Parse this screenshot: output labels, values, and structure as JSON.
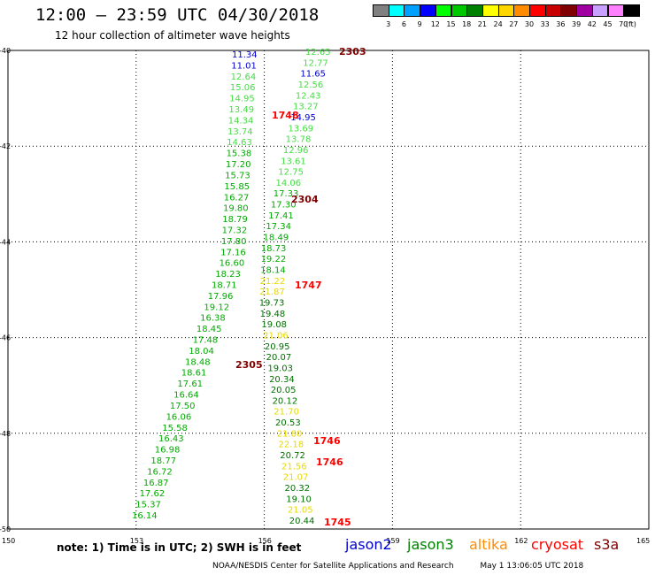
{
  "header": {
    "title": "12:00 – 23:59 UTC 04/30/2018",
    "subtitle": "12 hour collection of altimeter wave heights"
  },
  "legend": {
    "unit": "(ft)",
    "levels": [
      {
        "label": "3",
        "color": "#808080"
      },
      {
        "label": "6",
        "color": "#00ffff"
      },
      {
        "label": "9",
        "color": "#00a0ff"
      },
      {
        "label": "12",
        "color": "#0000ff"
      },
      {
        "label": "15",
        "color": "#00ff00"
      },
      {
        "label": "18",
        "color": "#00c800"
      },
      {
        "label": "21",
        "color": "#008000"
      },
      {
        "label": "24",
        "color": "#ffff00"
      },
      {
        "label": "27",
        "color": "#ffd700"
      },
      {
        "label": "30",
        "color": "#ff8c00"
      },
      {
        "label": "33",
        "color": "#ff0000"
      },
      {
        "label": "36",
        "color": "#c80000"
      },
      {
        "label": "39",
        "color": "#800000"
      },
      {
        "label": "42",
        "color": "#a000a0"
      },
      {
        "label": "45",
        "color": "#c8a0ff"
      },
      {
        "label": "70",
        "color": "#ff80ff"
      },
      {
        "label": "",
        "color": "#000000"
      }
    ]
  },
  "map": {
    "lon_ticks": [
      "150",
      "153",
      "156",
      "159",
      "162",
      "165"
    ],
    "lat_ticks": [
      "-40",
      "-42",
      "-44",
      "-46",
      "-48",
      "-50"
    ]
  },
  "colors": {
    "jason2": "#0000cc",
    "jason3": "#008000",
    "altika": "#ff8c00",
    "cryosat": "#ff0000",
    "s3a": "#800000",
    "light_green": "#44dd44",
    "green": "#00aa00",
    "dark_green": "#007000",
    "yellow": "#e6d800",
    "blue": "#0000cc"
  },
  "tracks": {
    "track_a": [
      {
        "v": "11.34",
        "c": "blue"
      },
      {
        "v": "11.01",
        "c": "blue"
      },
      {
        "v": "12.64",
        "c": "light_green"
      },
      {
        "v": "15.06",
        "c": "light_green"
      },
      {
        "v": "14.95",
        "c": "light_green"
      },
      {
        "v": "13.49",
        "c": "light_green"
      },
      {
        "v": "14.34",
        "c": "light_green"
      },
      {
        "v": "13.74",
        "c": "light_green"
      },
      {
        "v": "14.63",
        "c": "light_green"
      },
      {
        "v": "15.38",
        "c": "green"
      },
      {
        "v": "17.20",
        "c": "green"
      },
      {
        "v": "15.73",
        "c": "green"
      },
      {
        "v": "15.85",
        "c": "green"
      },
      {
        "v": "16.27",
        "c": "green"
      },
      {
        "v": "19.80",
        "c": "green"
      },
      {
        "v": "18.79",
        "c": "green"
      },
      {
        "v": "17.32",
        "c": "green"
      },
      {
        "v": "17.80",
        "c": "green"
      },
      {
        "v": "17.16",
        "c": "green"
      },
      {
        "v": "16.60",
        "c": "green"
      },
      {
        "v": "18.23",
        "c": "green"
      },
      {
        "v": "18.71",
        "c": "green"
      },
      {
        "v": "17.96",
        "c": "green"
      },
      {
        "v": "19.12",
        "c": "green"
      },
      {
        "v": "16.38",
        "c": "green"
      },
      {
        "v": "18.45",
        "c": "green"
      },
      {
        "v": "17.48",
        "c": "green"
      },
      {
        "v": "18.04",
        "c": "green"
      },
      {
        "v": "18.48",
        "c": "green"
      },
      {
        "v": "18.61",
        "c": "green"
      },
      {
        "v": "17.61",
        "c": "green"
      },
      {
        "v": "16.64",
        "c": "green"
      },
      {
        "v": "17.50",
        "c": "green"
      },
      {
        "v": "16.06",
        "c": "green"
      },
      {
        "v": "15.58",
        "c": "green"
      },
      {
        "v": "16.43",
        "c": "green"
      },
      {
        "v": "16.98",
        "c": "green"
      },
      {
        "v": "18.77",
        "c": "green"
      },
      {
        "v": "16.72",
        "c": "green"
      },
      {
        "v": "16.87",
        "c": "green"
      },
      {
        "v": "17.62",
        "c": "green"
      },
      {
        "v": "15.37",
        "c": "green"
      },
      {
        "v": "16.14",
        "c": "green"
      }
    ],
    "track_b": [
      {
        "v": "12.65",
        "c": "light_green"
      },
      {
        "v": "12.77",
        "c": "light_green"
      },
      {
        "v": "11.65",
        "c": "blue"
      },
      {
        "v": "12.56",
        "c": "light_green"
      },
      {
        "v": "12.43",
        "c": "light_green"
      },
      {
        "v": "13.27",
        "c": "light_green"
      },
      {
        "v": "14.95",
        "c": "blue"
      },
      {
        "v": "13.69",
        "c": "light_green"
      },
      {
        "v": "13.78",
        "c": "light_green"
      },
      {
        "v": "12.96",
        "c": "light_green"
      },
      {
        "v": "13.61",
        "c": "light_green"
      },
      {
        "v": "12.75",
        "c": "light_green"
      },
      {
        "v": "14.06",
        "c": "light_green"
      },
      {
        "v": "17.33",
        "c": "green"
      },
      {
        "v": "17.30",
        "c": "green"
      },
      {
        "v": "17.41",
        "c": "green"
      },
      {
        "v": "17.34",
        "c": "green"
      },
      {
        "v": "18.49",
        "c": "green"
      },
      {
        "v": "18.73",
        "c": "green"
      },
      {
        "v": "19.22",
        "c": "green"
      },
      {
        "v": "18.14",
        "c": "green"
      },
      {
        "v": "21.22",
        "c": "yellow"
      },
      {
        "v": "21.87",
        "c": "yellow"
      },
      {
        "v": "19.73",
        "c": "dark_green"
      },
      {
        "v": "19.48",
        "c": "dark_green"
      },
      {
        "v": "19.08",
        "c": "dark_green"
      },
      {
        "v": "21.06",
        "c": "yellow"
      },
      {
        "v": "20.95",
        "c": "dark_green"
      },
      {
        "v": "20.07",
        "c": "dark_green"
      },
      {
        "v": "19.03",
        "c": "dark_green"
      },
      {
        "v": "20.34",
        "c": "dark_green"
      },
      {
        "v": "20.05",
        "c": "dark_green"
      },
      {
        "v": "20.12",
        "c": "dark_green"
      },
      {
        "v": "21.70",
        "c": "yellow"
      },
      {
        "v": "20.53",
        "c": "dark_green"
      },
      {
        "v": "21.80",
        "c": "yellow"
      },
      {
        "v": "22.18",
        "c": "yellow"
      },
      {
        "v": "20.72",
        "c": "dark_green"
      },
      {
        "v": "21.56",
        "c": "yellow"
      },
      {
        "v": "21.07",
        "c": "yellow"
      },
      {
        "v": "20.32",
        "c": "dark_green"
      },
      {
        "v": "19.10",
        "c": "dark_green"
      },
      {
        "v": "21.05",
        "c": "yellow"
      },
      {
        "v": "20.44",
        "c": "dark_green"
      }
    ],
    "time_labels": [
      {
        "t": "2303",
        "c": "s3a"
      },
      {
        "t": "1748",
        "c": "cryosat"
      },
      {
        "t": "2304",
        "c": "s3a"
      },
      {
        "t": "1747",
        "c": "cryosat"
      },
      {
        "t": "2305",
        "c": "s3a"
      },
      {
        "t": "1746",
        "c": "cryosat"
      },
      {
        "t": "1746",
        "c": "cryosat"
      },
      {
        "t": "1745",
        "c": "cryosat"
      }
    ]
  },
  "footer": {
    "note": "note:  1) Time is in UTC;  2) SWH is in feet",
    "satellites": [
      {
        "name": "jason2",
        "color": "#0000cc"
      },
      {
        "name": "jason3",
        "color": "#008000"
      },
      {
        "name": "altika",
        "color": "#ff8c00"
      },
      {
        "name": "cryosat",
        "color": "#ff0000"
      },
      {
        "name": "s3a",
        "color": "#800000"
      }
    ],
    "credit": "NOAA/NESDIS Center for Satellite Applications and Research",
    "timestamp": "May  1 13:06:05 UTC 2018"
  }
}
